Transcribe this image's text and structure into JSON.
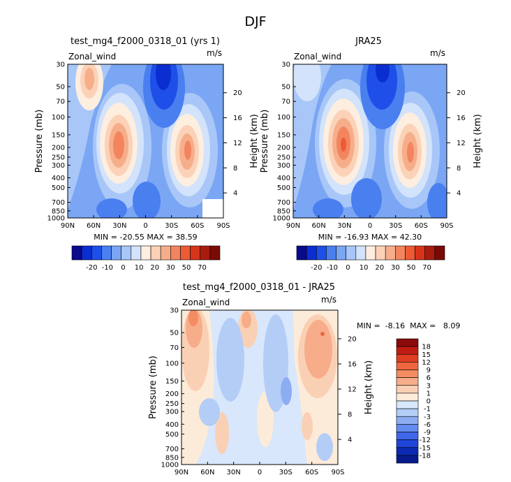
{
  "figure": {
    "season": "DJF"
  },
  "panels": [
    {
      "title": "test_mg4_f2000_0318_01 (yrs 1)",
      "field": "Zonal_wind",
      "units": "m/s",
      "stats": "MIN = -20.55   MAX =  38.59",
      "min": -20.55,
      "max": 38.59
    },
    {
      "title": "JRA25",
      "field": "Zonal_wind",
      "units": "m/s",
      "stats": "MIN = -16.93   MAX =  42.30",
      "min": -16.93,
      "max": 42.3
    },
    {
      "title": "test_mg4_f2000_0318_01 - JRA25",
      "field": "Zonal_wind",
      "units": "m/s",
      "stats": "MIN =  -8.16  MAX =   8.09",
      "min": -8.16,
      "max": 8.09
    }
  ],
  "axes": {
    "xlabels": [
      "90N",
      "60N",
      "30N",
      "0",
      "30S",
      "60S",
      "90S"
    ],
    "pressure_label": "Pressure (mb)",
    "pressure_ticks": [
      "30",
      "50",
      "70",
      "100",
      "150",
      "200",
      "250",
      "300",
      "400",
      "500",
      "700",
      "850",
      "1000"
    ],
    "height_label": "Height (km)",
    "height_ticks": [
      "4",
      "8",
      "12",
      "16",
      "20"
    ]
  },
  "colorbars": {
    "top": {
      "labels": [
        "-20",
        "-10",
        "0",
        "10",
        "20",
        "30",
        "50",
        "70"
      ],
      "colors": [
        "#0a0a8c",
        "#0b2ed1",
        "#1e4fe8",
        "#4a7ff0",
        "#7aa6f4",
        "#a8c7f8",
        "#d2e3fb",
        "#fdeee0",
        "#fbd2b8",
        "#f6ae8a",
        "#f28560",
        "#ed5b35",
        "#d8341c",
        "#a81c0e",
        "#7a0a05"
      ]
    },
    "diff": {
      "labels": [
        "18",
        "15",
        "12",
        "9",
        "6",
        "3",
        "1",
        "0",
        "-1",
        "-3",
        "-6",
        "-9",
        "-12",
        "-15",
        "-18"
      ],
      "colors": [
        "#8b0a0a",
        "#c01c12",
        "#e03d22",
        "#ef6640",
        "#f48c62",
        "#f7ad89",
        "#fad0b4",
        "#fdebd9",
        "#d8e7fb",
        "#b4cdf7",
        "#8dadf3",
        "#648cf0",
        "#3e68ea",
        "#1e45d8",
        "#0b2ab4",
        "#071b8c"
      ]
    }
  },
  "chart_data": [
    {
      "type": "heatmap",
      "title": "test_mg4_f2000_0318_01 (yrs 1)",
      "xlabel": "",
      "ylabel": "Pressure (mb)",
      "y2label": "Height (km)",
      "x": [
        "90N",
        "60N",
        "30N",
        "0",
        "30S",
        "60S",
        "90S"
      ],
      "y": [
        30,
        50,
        70,
        100,
        150,
        200,
        250,
        300,
        400,
        500,
        700,
        850,
        1000
      ],
      "zmin": -20.55,
      "zmax": 38.59,
      "colorbar_levels": [
        -20,
        -10,
        0,
        10,
        20,
        30,
        50,
        70
      ]
    },
    {
      "type": "heatmap",
      "title": "JRA25",
      "xlabel": "",
      "ylabel": "Pressure (mb)",
      "y2label": "Height (km)",
      "x": [
        "90N",
        "60N",
        "30N",
        "0",
        "30S",
        "60S",
        "90S"
      ],
      "y": [
        30,
        50,
        70,
        100,
        150,
        200,
        250,
        300,
        400,
        500,
        700,
        850,
        1000
      ],
      "zmin": -16.93,
      "zmax": 42.3,
      "colorbar_levels": [
        -20,
        -10,
        0,
        10,
        20,
        30,
        50,
        70
      ]
    },
    {
      "type": "heatmap",
      "title": "test_mg4_f2000_0318_01 - JRA25",
      "xlabel": "",
      "ylabel": "Pressure (mb)",
      "y2label": "Height (km)",
      "x": [
        "90N",
        "60N",
        "30N",
        "0",
        "30S",
        "60S",
        "90S"
      ],
      "y": [
        30,
        50,
        70,
        100,
        150,
        200,
        250,
        300,
        400,
        500,
        700,
        850,
        1000
      ],
      "zmin": -8.16,
      "zmax": 8.09,
      "colorbar_levels": [
        18,
        15,
        12,
        9,
        6,
        3,
        1,
        0,
        -1,
        -3,
        -6,
        -9,
        -12,
        -15,
        -18
      ]
    }
  ]
}
